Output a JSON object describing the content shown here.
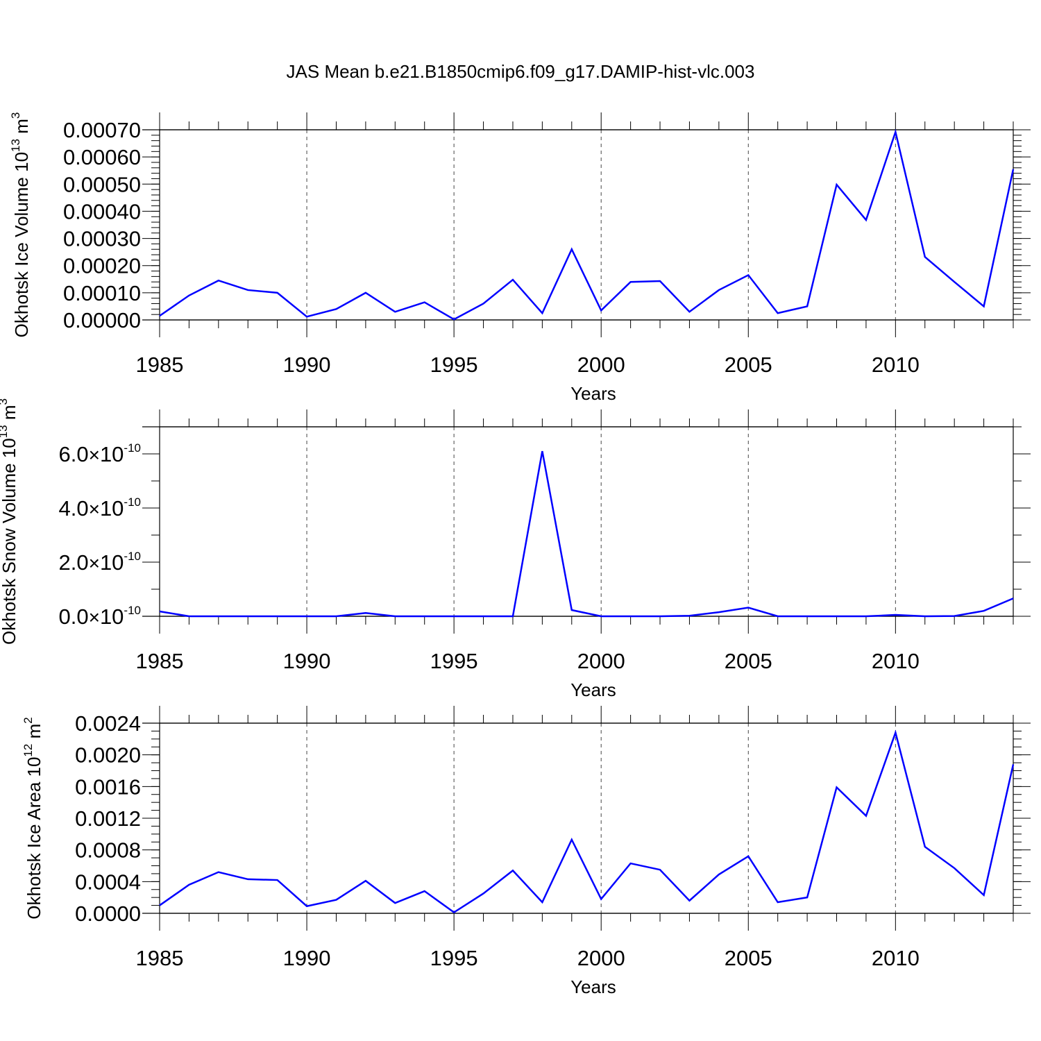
{
  "title": "JAS Mean b.e21.B1850cmip6.f09_g17.DAMIP-hist-vlc.003",
  "series_color": "#0000ff",
  "chart_data": [
    {
      "type": "line",
      "title": "JAS Mean b.e21.B1850cmip6.f09_g17.DAMIP-hist-vlc.003",
      "xlabel": "Years",
      "ylabel": {
        "main": "Okhotsk Ice Volume 10",
        "exp": "13",
        "unit": " m",
        "unit_exp": "3"
      },
      "xlim": [
        1985,
        2014
      ],
      "ylim": [
        0,
        0.0007
      ],
      "x_ticks": [
        1985,
        1990,
        1995,
        2000,
        2005,
        2010
      ],
      "x_tick_labels": [
        "1985",
        "1990",
        "1995",
        "2000",
        "2005",
        "2010"
      ],
      "y_ticks": [
        0,
        0.0001,
        0.0002,
        0.0003,
        0.0004,
        0.0005,
        0.0006,
        0.0007
      ],
      "y_tick_labels": [
        "0.00000",
        "0.00010",
        "0.00020",
        "0.00030",
        "0.00040",
        "0.00050",
        "0.00060",
        "0.00070"
      ],
      "y_minor_step": 2e-05,
      "y_tick_format": "plain",
      "grid": "x-dashed",
      "x": [
        1985,
        1986,
        1987,
        1988,
        1989,
        1990,
        1991,
        1992,
        1993,
        1994,
        1995,
        1996,
        1997,
        1998,
        1999,
        2000,
        2001,
        2002,
        2003,
        2004,
        2005,
        2006,
        2007,
        2008,
        2009,
        2010,
        2011,
        2012,
        2013,
        2014
      ],
      "series": [
        {
          "name": "Ice Volume",
          "values": [
            1.5e-05,
            9e-05,
            0.000145,
            0.00011,
            0.0001,
            1.2e-05,
            4e-05,
            0.0001,
            3e-05,
            6.5e-05,
            2e-06,
            6e-05,
            0.000148,
            2.5e-05,
            0.00026,
            3.5e-05,
            0.00014,
            0.000143,
            3e-05,
            0.00011,
            0.000165,
            2.5e-05,
            5e-05,
            0.000498,
            0.000368,
            0.000692,
            0.000232,
            0.00014,
            5e-05,
            0.000555
          ]
        }
      ]
    },
    {
      "type": "line",
      "xlabel": "Years",
      "ylabel": {
        "main": "Okhotsk Snow Volume 10",
        "exp": "13",
        "unit": " m",
        "unit_exp": "3"
      },
      "xlim": [
        1985,
        2014
      ],
      "ylim": [
        0,
        7e-10
      ],
      "x_ticks": [
        1985,
        1990,
        1995,
        2000,
        2005,
        2010
      ],
      "x_tick_labels": [
        "1985",
        "1990",
        "1995",
        "2000",
        "2005",
        "2010"
      ],
      "y_ticks": [
        0,
        2e-10,
        4e-10,
        6e-10
      ],
      "y_tick_labels": [
        {
          "mant": "0.0",
          "times": "×",
          "base": "10",
          "exp": "-10"
        },
        {
          "mant": "2.0",
          "times": "×",
          "base": "10",
          "exp": "-10"
        },
        {
          "mant": "4.0",
          "times": "×",
          "base": "10",
          "exp": "-10"
        },
        {
          "mant": "6.0",
          "times": "×",
          "base": "10",
          "exp": "-10"
        }
      ],
      "y_minor_step": 1e-10,
      "y_tick_format": "sci",
      "grid": "x-dashed",
      "x": [
        1985,
        1986,
        1987,
        1988,
        1989,
        1990,
        1991,
        1992,
        1993,
        1994,
        1995,
        1996,
        1997,
        1998,
        1999,
        2000,
        2001,
        2002,
        2003,
        2004,
        2005,
        2006,
        2007,
        2008,
        2009,
        2010,
        2011,
        2012,
        2013,
        2014
      ],
      "series": [
        {
          "name": "Snow Volume",
          "values": [
            1.8e-11,
            0,
            0,
            0,
            0,
            0,
            0,
            1.2e-11,
            0,
            0,
            0,
            0,
            0,
            6.1e-10,
            2.3e-11,
            0,
            0,
            0,
            2e-12,
            1.5e-11,
            3.2e-11,
            0,
            0,
            0,
            0,
            5e-12,
            0,
            1e-12,
            2e-11,
            6.6e-11
          ]
        }
      ]
    },
    {
      "type": "line",
      "xlabel": "Years",
      "ylabel": {
        "main": "Okhotsk Ice Area 10",
        "exp": "12",
        "unit": " m",
        "unit_exp": "2"
      },
      "xlim": [
        1985,
        2014
      ],
      "ylim": [
        0,
        0.0024
      ],
      "x_ticks": [
        1985,
        1990,
        1995,
        2000,
        2005,
        2010
      ],
      "x_tick_labels": [
        "1985",
        "1990",
        "1995",
        "2000",
        "2005",
        "2010"
      ],
      "y_ticks": [
        0,
        0.0004,
        0.0008,
        0.0012,
        0.0016,
        0.002,
        0.0024
      ],
      "y_tick_labels": [
        "0.0000",
        "0.0004",
        "0.0008",
        "0.0012",
        "0.0016",
        "0.0020",
        "0.0024"
      ],
      "y_minor_step": 0.0001,
      "y_tick_format": "plain",
      "grid": "x-dashed",
      "x": [
        1985,
        1986,
        1987,
        1988,
        1989,
        1990,
        1991,
        1992,
        1993,
        1994,
        1995,
        1996,
        1997,
        1998,
        1999,
        2000,
        2001,
        2002,
        2003,
        2004,
        2005,
        2006,
        2007,
        2008,
        2009,
        2010,
        2011,
        2012,
        2013,
        2014
      ],
      "series": [
        {
          "name": "Ice Area",
          "values": [
            0.0001,
            0.00036,
            0.00052,
            0.00043,
            0.00042,
            9e-05,
            0.00017,
            0.00041,
            0.00013,
            0.00028,
            1.2e-05,
            0.00025,
            0.00054,
            0.00014,
            0.00093,
            0.00018,
            0.00063,
            0.00055,
            0.00016,
            0.00049,
            0.00072,
            0.00014,
            0.0002,
            0.00159,
            0.00123,
            0.00228,
            0.00084,
            0.00057,
            0.00023,
            0.00188
          ]
        }
      ]
    }
  ]
}
